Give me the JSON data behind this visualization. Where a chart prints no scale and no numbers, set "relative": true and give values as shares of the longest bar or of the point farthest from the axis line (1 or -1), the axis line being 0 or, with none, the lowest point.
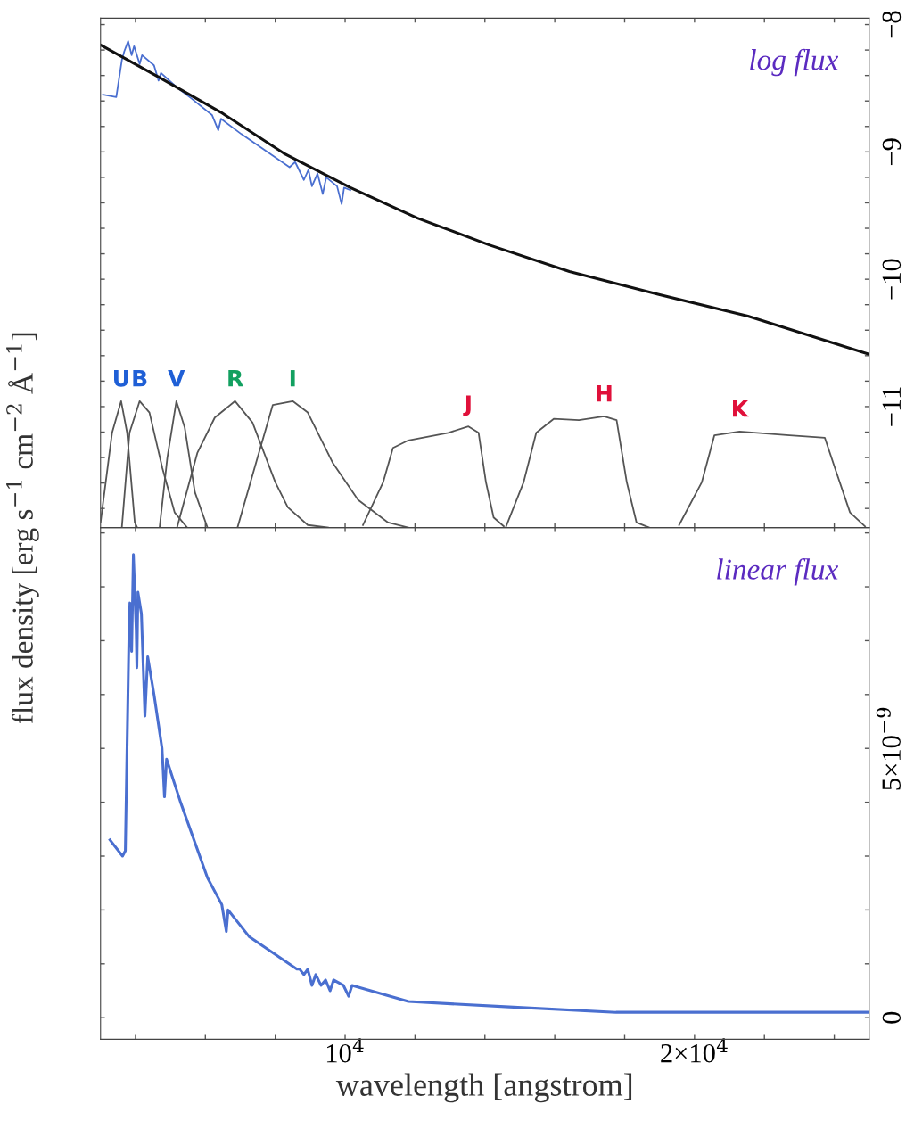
{
  "chart_data": [
    {
      "type": "line",
      "tick_labels": "y",
      "annotations": [
        "log flux"
      ],
      "xlim": [
        3000,
        25000
      ],
      "xticks": [
        {
          "value": 4000,
          "label": null
        },
        {
          "value": 6000,
          "label": null
        },
        {
          "value": 8000,
          "label": null
        },
        {
          "value": 10000,
          "label": null
        },
        {
          "value": 12000,
          "label": null
        },
        {
          "value": 14000,
          "label": null
        },
        {
          "value": 16000,
          "label": null
        },
        {
          "value": 18000,
          "label": null
        },
        {
          "value": 20000,
          "label": null
        },
        {
          "value": 22000,
          "label": null
        },
        {
          "value": 24000,
          "label": null
        }
      ],
      "ylim": [
        -11.95,
        -7.95
      ],
      "yticks": [
        {
          "value": -8,
          "label": "−8"
        },
        {
          "value": -9,
          "label": "−9"
        },
        {
          "value": -10,
          "label": "−10"
        },
        {
          "value": -11,
          "label": "−11"
        },
        {
          "value": -8.2,
          "label": null
        },
        {
          "value": -8.4,
          "label": null
        },
        {
          "value": -8.6,
          "label": null
        },
        {
          "value": -8.8,
          "label": null
        },
        {
          "value": -9.2,
          "label": null
        },
        {
          "value": -9.4,
          "label": null
        },
        {
          "value": -9.6,
          "label": null
        },
        {
          "value": -9.8,
          "label": null
        },
        {
          "value": -10.2,
          "label": null
        },
        {
          "value": -10.4,
          "label": null
        },
        {
          "value": -10.6,
          "label": null
        },
        {
          "value": -10.8,
          "label": null
        },
        {
          "value": -11.2,
          "label": null
        },
        {
          "value": -11.4,
          "label": null
        },
        {
          "value": -11.6,
          "label": null
        },
        {
          "value": -11.8,
          "label": null
        }
      ],
      "series": [
        {
          "color": "#4a6fd0",
          "x": [
            3070,
            3450,
            3610,
            3680,
            3790,
            3890,
            3960,
            4120,
            4190,
            4530,
            4660,
            4730,
            5170,
            5600,
            6190,
            6370,
            6450,
            7030,
            8410,
            8570,
            8820,
            8950,
            9050,
            9210,
            9360,
            9460,
            9770,
            9900,
            9970,
            10150
          ],
          "values": [
            -8.55,
            -8.57,
            -8.28,
            -8.21,
            -8.13,
            -8.24,
            -8.17,
            -8.31,
            -8.24,
            -8.32,
            -8.44,
            -8.38,
            -8.49,
            -8.58,
            -8.71,
            -8.83,
            -8.74,
            -8.86,
            -9.12,
            -9.08,
            -9.22,
            -9.14,
            -9.27,
            -9.17,
            -9.33,
            -9.2,
            -9.27,
            -9.41,
            -9.28,
            -9.3
          ]
        },
        {
          "color": "#111111",
          "x": [
            3000,
            4650,
            6450,
            8240,
            10150,
            12070,
            14120,
            16420,
            18980,
            21530,
            25000
          ],
          "values": [
            -8.16,
            -8.41,
            -8.69,
            -9.01,
            -9.28,
            -9.52,
            -9.73,
            -9.94,
            -10.12,
            -10.29,
            -10.59
          ]
        }
      ]
    },
    {
      "type": "line",
      "relative": true,
      "tick_labels": false,
      "xlim": [
        3000,
        25000
      ],
      "series": [
        {
          "name": "U",
          "color": "#555555",
          "x": [
            3000,
            3330,
            3590,
            3760,
            3980,
            4050
          ],
          "values": [
            0.04,
            0.75,
            1.0,
            0.75,
            0.04,
            0
          ]
        },
        {
          "name": "B",
          "color": "#555555",
          "x": [
            3610,
            3830,
            4120,
            4400,
            4770,
            5120,
            5480
          ],
          "values": [
            0,
            0.75,
            1.0,
            0.91,
            0.47,
            0.12,
            0
          ]
        },
        {
          "name": "V",
          "color": "#555555",
          "x": [
            4690,
            4910,
            5170,
            5410,
            5700,
            6060
          ],
          "values": [
            0,
            0.55,
            1.0,
            0.79,
            0.28,
            0
          ]
        },
        {
          "name": "R",
          "color": "#555555",
          "x": [
            5190,
            5770,
            6270,
            6850,
            7350,
            8000,
            8360,
            8930,
            9510
          ],
          "values": [
            0,
            0.59,
            0.87,
            1.0,
            0.83,
            0.36,
            0.16,
            0.02,
            0
          ]
        },
        {
          "name": "I",
          "color": "#555555",
          "x": [
            6920,
            7490,
            7930,
            8500,
            8930,
            9650,
            10370,
            11230,
            11810
          ],
          "values": [
            0,
            0.55,
            0.97,
            1.0,
            0.91,
            0.51,
            0.22,
            0.04,
            0
          ]
        },
        {
          "name": "J",
          "color": "#555555",
          "x": [
            10510,
            11090,
            11370,
            11810,
            12380,
            12950,
            13530,
            13820,
            14030,
            14250,
            14540
          ],
          "values": [
            0.02,
            0.36,
            0.63,
            0.69,
            0.72,
            0.75,
            0.8,
            0.75,
            0.36,
            0.08,
            0.01
          ]
        },
        {
          "name": "H",
          "color": "#555555",
          "x": [
            14610,
            15110,
            15470,
            15970,
            16690,
            17410,
            17770,
            18060,
            18340,
            18700
          ],
          "values": [
            0.01,
            0.36,
            0.75,
            0.86,
            0.85,
            0.88,
            0.85,
            0.36,
            0.04,
            0
          ]
        },
        {
          "name": "K",
          "color": "#555555",
          "x": [
            19560,
            20210,
            20570,
            21290,
            22720,
            23730,
            24020,
            24450,
            24880
          ],
          "values": [
            0.02,
            0.36,
            0.73,
            0.76,
            0.73,
            0.71,
            0.47,
            0.12,
            0.01
          ]
        }
      ]
    },
    {
      "type": "line",
      "xlabel": "wavelength [angstrom]",
      "ylabel": "flux density [erg s$^{−1}$ cm$^{−2}$ Å$^{−1}$]",
      "annotations": [
        "linear flux"
      ],
      "xlim": [
        3000,
        25000
      ],
      "xticks": [
        {
          "value": 4000,
          "label": null
        },
        {
          "value": 6000,
          "label": null
        },
        {
          "value": 8000,
          "label": null
        },
        {
          "value": 10000,
          "label": "10$^{4}$"
        },
        {
          "value": 12000,
          "label": null
        },
        {
          "value": 14000,
          "label": null
        },
        {
          "value": 16000,
          "label": null
        },
        {
          "value": 18000,
          "label": null
        },
        {
          "value": 20000,
          "label": "2×10$^{4}$"
        },
        {
          "value": 22000,
          "label": null
        },
        {
          "value": 24000,
          "label": null
        }
      ],
      "ylim": [
        -4e-10,
        9.1e-09
      ],
      "yticks": [
        {
          "value": 0,
          "label": "0"
        },
        {
          "value": 5e-09,
          "label": "5×10$^{−9}$"
        },
        {
          "value": 1e-09,
          "label": null
        },
        {
          "value": 2e-09,
          "label": null
        },
        {
          "value": 3e-09,
          "label": null
        },
        {
          "value": 4e-09,
          "label": null
        },
        {
          "value": 6e-09,
          "label": null
        },
        {
          "value": 7e-09,
          "label": null
        },
        {
          "value": 8e-09,
          "label": null
        },
        {
          "value": 9e-09,
          "label": null
        }
      ],
      "series": [
        {
          "color": "#4a6fd0",
          "x": [
            3270,
            3630,
            3710,
            3810,
            3840,
            3890,
            3940,
            4020,
            4040,
            4070,
            4170,
            4270,
            4350,
            4530,
            4760,
            4830,
            4890,
            5290,
            6060,
            6470,
            6600,
            6650,
            7260,
            8620,
            8700,
            8820,
            8930,
            9050,
            9160,
            9310,
            9440,
            9570,
            9670,
            9950,
            10100,
            10200,
            11810,
            14700,
            17750,
            25000
          ],
          "values": [
            3.3e-09,
            3e-09,
            3.1e-09,
            7e-09,
            7.7e-09,
            6.8e-09,
            8.6e-09,
            7.2e-09,
            6.5e-09,
            7.9e-09,
            7.5e-09,
            5.6e-09,
            6.7e-09,
            6e-09,
            5e-09,
            4.1e-09,
            4.8e-09,
            4e-09,
            2.6e-09,
            2.1e-09,
            1.6e-09,
            2e-09,
            1.5e-09,
            9e-10,
            9e-10,
            8e-10,
            9e-10,
            6e-10,
            8e-10,
            6e-10,
            7e-10,
            5e-10,
            7e-10,
            6e-10,
            4e-10,
            6e-10,
            3e-10,
            2e-10,
            1e-10,
            1e-10
          ]
        }
      ]
    }
  ]
}
